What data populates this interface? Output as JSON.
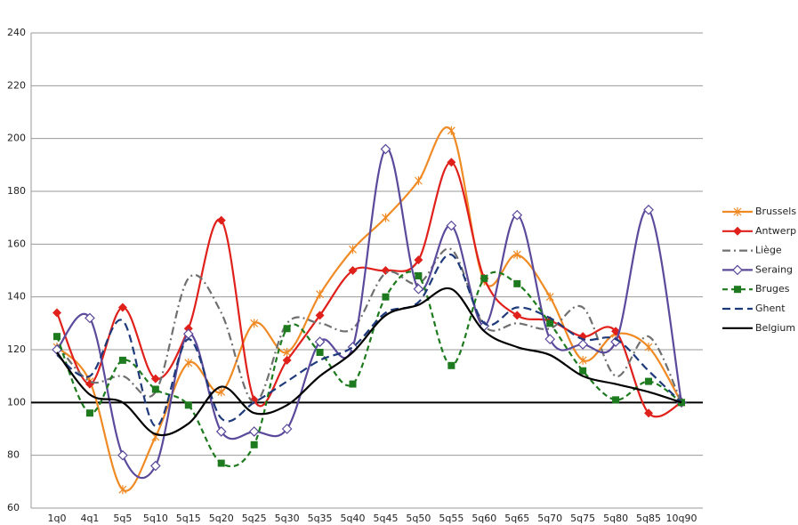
{
  "chart_data": {
    "type": "line",
    "categories": [
      "1q0",
      "4q1",
      "5q5",
      "5q10",
      "5q15",
      "5q20",
      "5q25",
      "5q30",
      "5q35",
      "5q40",
      "5q45",
      "5q50",
      "5q55",
      "5q60",
      "5q65",
      "5q70",
      "5q75",
      "5q80",
      "5q85",
      "10q90"
    ],
    "series": [
      {
        "name": "Brussels",
        "color": "#f08a24",
        "dash": "solid",
        "marker": "star",
        "values": [
          121,
          108,
          67,
          87,
          115,
          104,
          130,
          119,
          141,
          158,
          170,
          184,
          203,
          146,
          156,
          140,
          116,
          126,
          121,
          100
        ]
      },
      {
        "name": "Antwerp",
        "color": "#e0201b",
        "dash": "solid",
        "marker": "diamond",
        "values": [
          134,
          107,
          136,
          109,
          128,
          169,
          101,
          116,
          133,
          150,
          150,
          154,
          191,
          147,
          133,
          131,
          125,
          127,
          96,
          100
        ]
      },
      {
        "name": "Liège",
        "color": "#707070",
        "dash": "dashdot",
        "marker": "none",
        "values": [
          122,
          108,
          110,
          104,
          147,
          134,
          100,
          130,
          130,
          128,
          149,
          145,
          158,
          129,
          130,
          128,
          136,
          110,
          125,
          100
        ]
      },
      {
        "name": "Seraing",
        "color": "#5b4a9b",
        "dash": "solid",
        "marker": "open-diamond",
        "values": [
          120,
          132,
          80,
          76,
          126,
          89,
          89,
          90,
          123,
          121,
          196,
          143,
          167,
          129,
          171,
          124,
          122,
          123,
          173,
          100
        ]
      },
      {
        "name": "Bruges",
        "color": "#1e7a1e",
        "dash": "dash",
        "marker": "square",
        "values": [
          125,
          96,
          116,
          105,
          99,
          77,
          84,
          128,
          119,
          107,
          140,
          148,
          114,
          147,
          145,
          130,
          112,
          101,
          108,
          100
        ]
      },
      {
        "name": "Ghent",
        "color": "#1f3a7a",
        "dash": "longdash",
        "marker": "none",
        "values": [
          118,
          110,
          131,
          91,
          124,
          94,
          100,
          108,
          116,
          121,
          134,
          138,
          156,
          130,
          136,
          132,
          124,
          124,
          112,
          100
        ]
      },
      {
        "name": "Belgium",
        "color": "#000000",
        "dash": "solid",
        "marker": "none",
        "values": [
          119,
          103,
          100,
          88,
          92,
          106,
          96,
          99,
          110,
          119,
          133,
          137,
          143,
          127,
          121,
          118,
          110,
          107,
          104,
          100
        ]
      }
    ],
    "ylim": [
      60,
      240
    ],
    "yticks": [
      60,
      80,
      100,
      120,
      140,
      160,
      180,
      200,
      220,
      240
    ],
    "grid": true,
    "baseline": 100,
    "smooth": true,
    "legend": "right"
  }
}
